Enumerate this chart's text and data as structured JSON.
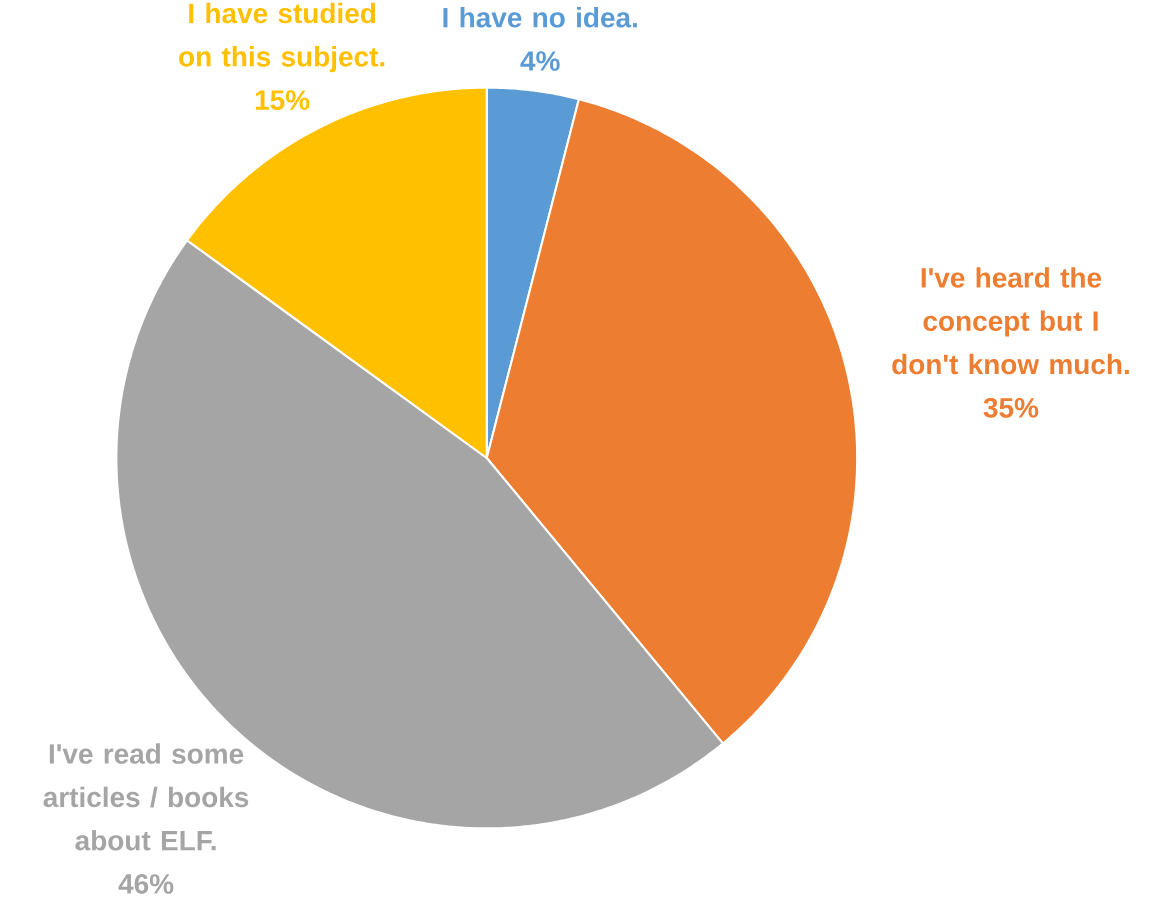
{
  "chart_data": {
    "type": "pie",
    "categories": [
      "I have no idea.",
      "I've heard the concept but I don't know much.",
      "I've read some articles / books about ELF.",
      "I have studied on this subject."
    ],
    "values": [
      4,
      35,
      46,
      15
    ],
    "value_labels": [
      "4%",
      "35%",
      "46%",
      "15%"
    ],
    "colors": [
      "#5b9bd5",
      "#ed7d31",
      "#a5a5a5",
      "#ffc000"
    ]
  }
}
